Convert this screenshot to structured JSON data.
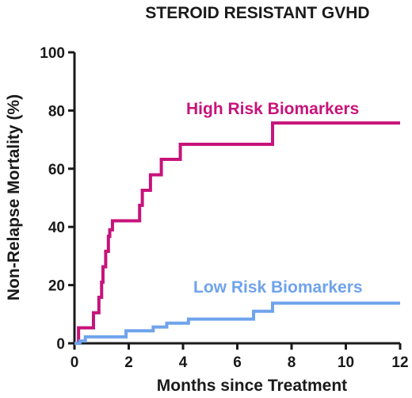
{
  "chart_data": {
    "type": "line",
    "step": true,
    "title": "STEROID RESISTANT GVHD",
    "xlabel": "Months since Treatment",
    "ylabel": "Non-Relapse Mortality (%)",
    "xlim": [
      0,
      12
    ],
    "ylim": [
      0,
      100
    ],
    "xticks": [
      0,
      2,
      4,
      6,
      8,
      10,
      12
    ],
    "yticks": [
      0,
      20,
      40,
      60,
      80,
      100
    ],
    "grid": false,
    "legend": "inline labels",
    "series": [
      {
        "name": "High Risk Biomarkers",
        "color": "#c7137a",
        "x": [
          0,
          0.15,
          0.7,
          0.9,
          1.0,
          1.05,
          1.15,
          1.25,
          1.3,
          1.4,
          2.4,
          2.5,
          2.8,
          3.2,
          3.9,
          7.3,
          12
        ],
        "y": [
          0,
          5.3,
          10.5,
          15.8,
          21,
          26.3,
          31.6,
          36.8,
          39,
          42.1,
          47.4,
          52.6,
          57.9,
          63.2,
          68.4,
          75.7,
          75.7
        ]
      },
      {
        "name": "Low Risk Biomarkers",
        "color": "#6fa3ec",
        "x": [
          0,
          0.2,
          0.4,
          1.9,
          2.9,
          3.4,
          4.2,
          6.6,
          7.3,
          12
        ],
        "y": [
          0,
          0.8,
          2.2,
          4.3,
          5.6,
          6.9,
          8.3,
          11,
          13.8,
          13.8
        ]
      }
    ]
  }
}
